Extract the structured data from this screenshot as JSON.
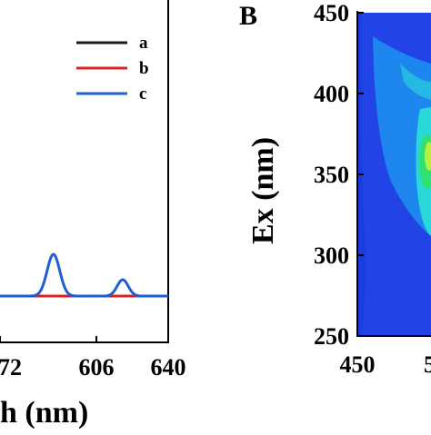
{
  "chart_data": [
    {
      "type": "line",
      "title": "",
      "xlabel": "h (nm)",
      "ylabel": "",
      "xlim": [
        555,
        640
      ],
      "x_ticks": [
        "72",
        "606",
        "640"
      ],
      "legend_position": "top-right",
      "series": [
        {
          "name": "a",
          "color": "#1a1a1a",
          "points": [
            [
              555,
              0
            ],
            [
              640,
              0
            ]
          ]
        },
        {
          "name": "b",
          "color": "#e02020",
          "points": [
            [
              555,
              0
            ],
            [
              640,
              0
            ]
          ]
        },
        {
          "name": "c",
          "color": "#1f5fd0",
          "points": [
            [
              555,
              0
            ],
            [
              576,
              0
            ],
            [
              582,
              46
            ],
            [
              588,
              2
            ],
            [
              596,
              0
            ],
            [
              606,
              0
            ],
            [
              617,
              18
            ],
            [
              623,
              0
            ],
            [
              640,
              0
            ]
          ]
        }
      ]
    },
    {
      "type": "heatmap",
      "panel_label": "B",
      "title": "",
      "xlabel": "",
      "ylabel": "Ex (nm)",
      "x_ticks": [
        "450",
        "5"
      ],
      "y_ticks": [
        "450",
        "400",
        "350",
        "300",
        "250"
      ],
      "ylim": [
        250,
        450
      ],
      "colors": {
        "background": "#1a3de0",
        "low": "#1e8ff0",
        "mid": "#2ad8d8",
        "high": "#30e070",
        "peak": "#b8f040"
      }
    }
  ]
}
